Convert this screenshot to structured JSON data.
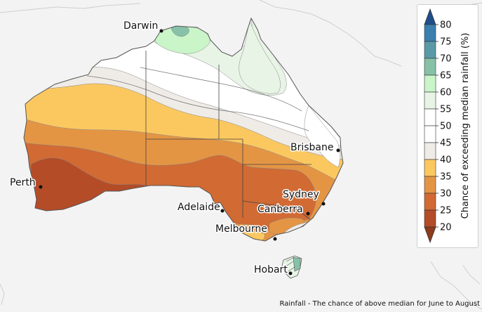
{
  "caption": "Rainfall - The chance of above median for June to August",
  "legend": {
    "title": "Chance of exceeding median rainfall (%)",
    "ticks": [
      "80",
      "75",
      "70",
      "65",
      "60",
      "55",
      "50",
      "45",
      "40",
      "35",
      "30",
      "25",
      "20"
    ],
    "colors": {
      "over_80": "#1f4e8c",
      "75_80": "#3a7fae",
      "70_75": "#5b99a6",
      "65_70": "#86c1a8",
      "60_65": "#c9f5c8",
      "55_60": "#e8f4e6",
      "50_55": "#ffffff",
      "45_50": "#ffffff",
      "40_45": "#efebe7",
      "35_40": "#fbc860",
      "30_35": "#e49544",
      "25_30": "#d16a33",
      "20_25": "#b44c28",
      "under_20": "#8e3a1c"
    }
  },
  "cities": [
    {
      "name": "Darwin"
    },
    {
      "name": "Brisbane"
    },
    {
      "name": "Perth"
    },
    {
      "name": "Sydney"
    },
    {
      "name": "Adelaide"
    },
    {
      "name": "Canberra"
    },
    {
      "name": "Melbourne"
    },
    {
      "name": "Hobart"
    }
  ]
}
